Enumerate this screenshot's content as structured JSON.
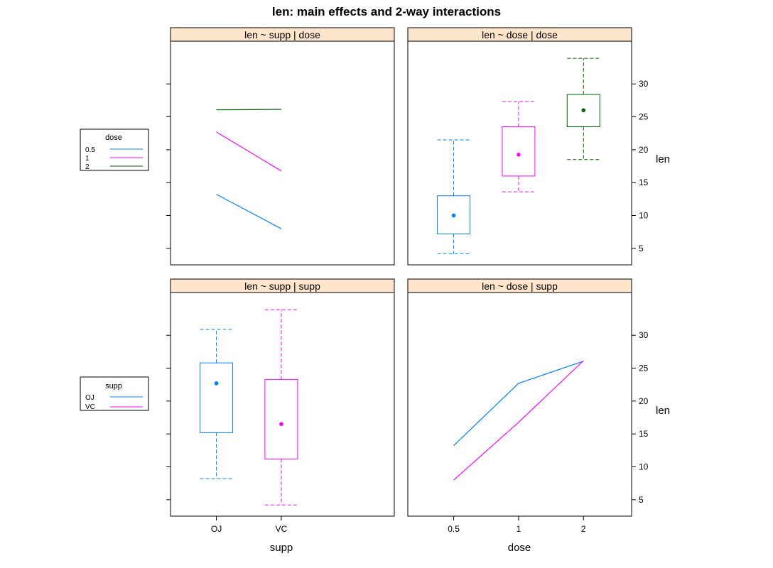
{
  "title": "len: main effects and 2-way interactions",
  "colors": {
    "strip": "#ffe5cc",
    "dose_0.5": "#0080ff",
    "dose_1": "#ff00ff",
    "dose_2": "#006400",
    "supp_OJ": "#0080ff",
    "supp_VC": "#ff00ff"
  },
  "x_axis": {
    "supp_label": "supp",
    "dose_label": "dose",
    "supp_ticks": [
      "OJ",
      "VC"
    ],
    "dose_ticks": [
      "0.5",
      "1",
      "2"
    ]
  },
  "y_axis": {
    "label": "len",
    "ticks": [
      5,
      10,
      15,
      20,
      25,
      30
    ],
    "ylim": [
      2.5,
      36.5
    ]
  },
  "legends": {
    "dose": {
      "title": "dose",
      "entries": [
        "0.5",
        "1",
        "2"
      ]
    },
    "supp": {
      "title": "supp",
      "entries": [
        "OJ",
        "VC"
      ]
    }
  },
  "chart_data": [
    {
      "panel": "top-left",
      "type": "line",
      "strip": "len ~ supp | dose",
      "x": [
        "OJ",
        "VC"
      ],
      "series": [
        {
          "name": "0.5",
          "values": [
            13.23,
            7.98
          ]
        },
        {
          "name": "1",
          "values": [
            22.7,
            16.77
          ]
        },
        {
          "name": "2",
          "values": [
            26.06,
            26.14
          ]
        }
      ]
    },
    {
      "panel": "top-right",
      "type": "box",
      "strip": "len ~ dose | dose",
      "categories": [
        "0.5",
        "1",
        "2"
      ],
      "boxes": [
        {
          "lower_whisker": 4.2,
          "q1": 7.2,
          "median": 10.0,
          "q3": 13.0,
          "upper_whisker": 21.5
        },
        {
          "lower_whisker": 13.6,
          "q1": 16.0,
          "median": 19.25,
          "q3": 23.5,
          "upper_whisker": 27.3
        },
        {
          "lower_whisker": 18.5,
          "q1": 23.5,
          "median": 26.0,
          "q3": 28.4,
          "upper_whisker": 33.9
        }
      ]
    },
    {
      "panel": "bottom-left",
      "type": "box",
      "strip": "len ~ supp | supp",
      "categories": [
        "OJ",
        "VC"
      ],
      "boxes": [
        {
          "lower_whisker": 8.2,
          "q1": 15.2,
          "median": 22.7,
          "q3": 25.8,
          "upper_whisker": 30.9
        },
        {
          "lower_whisker": 4.2,
          "q1": 11.2,
          "median": 16.5,
          "q3": 23.3,
          "upper_whisker": 33.9
        }
      ]
    },
    {
      "panel": "bottom-right",
      "type": "line",
      "strip": "len ~ dose | supp",
      "x": [
        "0.5",
        "1",
        "2"
      ],
      "series": [
        {
          "name": "OJ",
          "values": [
            13.23,
            22.7,
            26.06
          ]
        },
        {
          "name": "VC",
          "values": [
            7.98,
            16.77,
            26.14
          ]
        }
      ]
    }
  ]
}
